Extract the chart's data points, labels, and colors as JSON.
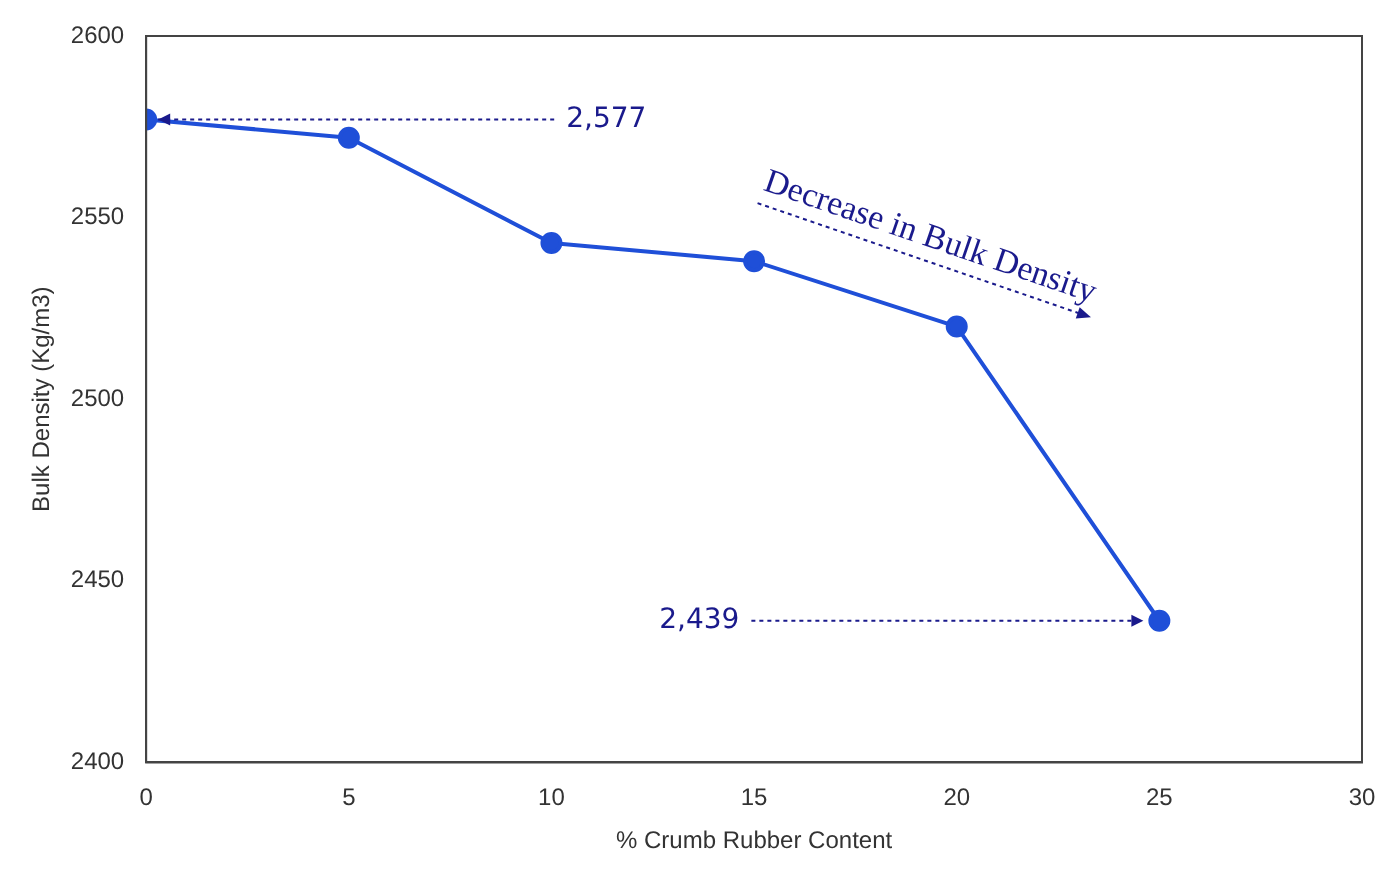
{
  "chart_data": {
    "type": "line",
    "xlabel": "% Crumb Rubber Content",
    "ylabel": "Bulk Density (Kg/m3)",
    "x": [
      0,
      5,
      10,
      15,
      20,
      25
    ],
    "series": [
      {
        "color": "#1f4fd8",
        "values": [
          2577,
          2572,
          2543,
          2538,
          2520,
          2439
        ]
      }
    ],
    "xlim": [
      0,
      30
    ],
    "xticks": [
      0,
      5,
      10,
      15,
      20,
      25,
      30
    ],
    "ylim": [
      2400,
      2600
    ],
    "yticks": [
      2400,
      2450,
      2500,
      2550,
      2600
    ],
    "grid": false,
    "legend": false,
    "marker": "circle",
    "line_style": "solid",
    "annotations": [
      {
        "text": "2,577",
        "x": 0,
        "y": 2577
      },
      {
        "text": "2,439",
        "x": 25,
        "y": 2439
      },
      "Decrease in Bulk Density"
    ]
  }
}
